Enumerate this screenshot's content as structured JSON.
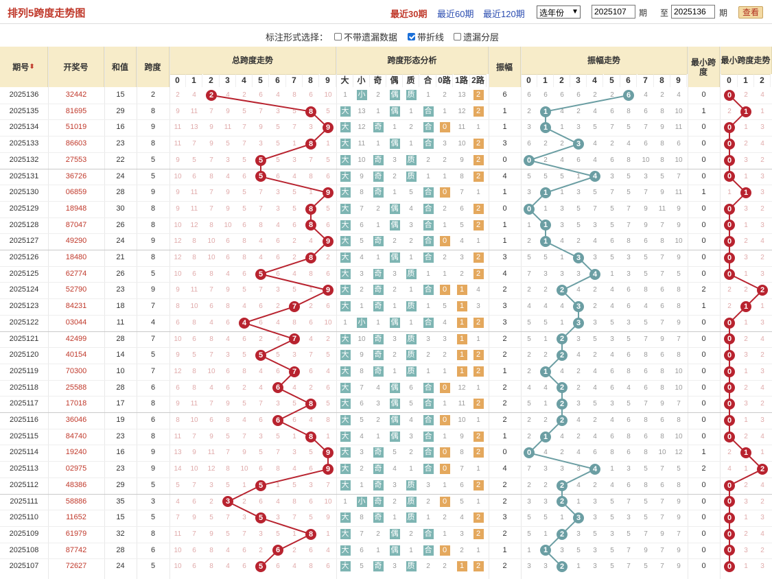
{
  "header": {
    "title": "排列5跨度走势图",
    "links": [
      "最近30期",
      "最近60期",
      "最近120期"
    ],
    "year_select": "选年份",
    "from_label": "期",
    "to_prefix": "至",
    "to_label": "期",
    "from_value": "2025107",
    "to_value": "2025136",
    "button": "查看"
  },
  "options": {
    "label": "标注形式选择：",
    "items": [
      {
        "label": "不带遗漏数据",
        "checked": false
      },
      {
        "label": "带折线",
        "checked": true
      },
      {
        "label": "遗漏分层",
        "checked": false
      }
    ]
  },
  "columns": {
    "period": "期号",
    "draw": "开奖号",
    "sum": "和值",
    "span": "跨度",
    "span_trend": "总跨度走势",
    "span_shape": "跨度形态分析",
    "amp": "振幅",
    "amp_trend": "振幅走势",
    "min_span": "最小跨度",
    "min_span_trend": "最小跨度走势",
    "digits": [
      "0",
      "1",
      "2",
      "3",
      "4",
      "5",
      "6",
      "7",
      "8",
      "9"
    ],
    "shape_heads": [
      "大",
      "小",
      "奇",
      "偶",
      "质",
      "合",
      "0路",
      "1路",
      "2路"
    ],
    "min_digits": [
      "0",
      "1",
      "2"
    ]
  },
  "colors": {
    "red": "#b8232f",
    "teal": "#6b9ea3",
    "header_bg": "#f7ecc9",
    "tag_blue": "#7eb5b3",
    "tag_orange": "#e4a85d"
  },
  "rows": [
    {
      "p": "2025136",
      "n": "32442",
      "s": "15",
      "k": 2,
      "sm": [
        "1",
        "小",
        "2",
        "偶",
        "质",
        "1",
        "2",
        "13",
        "2"
      ],
      "a": 6,
      "m": 0
    },
    {
      "p": "2025135",
      "n": "81695",
      "s": "29",
      "k": 8,
      "sm": [
        "大",
        "13",
        "1",
        "偶",
        "1",
        "合",
        "1",
        "12",
        "2"
      ],
      "a": 1,
      "m": 1
    },
    {
      "p": "2025134",
      "n": "51019",
      "s": "16",
      "k": 9,
      "sm": [
        "大",
        "12",
        "奇",
        "1",
        "2",
        "合",
        "0",
        "11",
        "1"
      ],
      "a": 1,
      "m": 0
    },
    {
      "p": "2025133",
      "n": "86603",
      "s": "23",
      "k": 8,
      "sm": [
        "大",
        "11",
        "1",
        "偶",
        "1",
        "合",
        "3",
        "10",
        "2"
      ],
      "a": 3,
      "m": 0
    },
    {
      "p": "2025132",
      "n": "27553",
      "s": "22",
      "k": 5,
      "sm": [
        "大",
        "10",
        "奇",
        "3",
        "质",
        "2",
        "2",
        "9",
        "2"
      ],
      "a": 0,
      "m": 0
    },
    {
      "p": "2025131",
      "n": "36726",
      "s": "24",
      "k": 5,
      "sm": [
        "大",
        "9",
        "奇",
        "2",
        "质",
        "1",
        "1",
        "8",
        "2"
      ],
      "a": 4,
      "m": 0
    },
    {
      "p": "2025130",
      "n": "06859",
      "s": "28",
      "k": 9,
      "sm": [
        "大",
        "8",
        "奇",
        "1",
        "5",
        "合",
        "0",
        "7",
        "1"
      ],
      "a": 1,
      "m": 1
    },
    {
      "p": "2025129",
      "n": "18948",
      "s": "30",
      "k": 8,
      "sm": [
        "大",
        "7",
        "2",
        "偶",
        "4",
        "合",
        "2",
        "6",
        "2"
      ],
      "a": 0,
      "m": 0
    },
    {
      "p": "2025128",
      "n": "87047",
      "s": "26",
      "k": 8,
      "sm": [
        "大",
        "6",
        "1",
        "偶",
        "3",
        "合",
        "1",
        "5",
        "2"
      ],
      "a": 1,
      "m": 0
    },
    {
      "p": "2025127",
      "n": "49290",
      "s": "24",
      "k": 9,
      "sm": [
        "大",
        "5",
        "奇",
        "2",
        "2",
        "合",
        "0",
        "4",
        "1"
      ],
      "a": 1,
      "m": 0
    },
    {
      "p": "2025126",
      "n": "18480",
      "s": "21",
      "k": 8,
      "sm": [
        "大",
        "4",
        "1",
        "偶",
        "1",
        "合",
        "2",
        "3",
        "2"
      ],
      "a": 3,
      "m": 0
    },
    {
      "p": "2025125",
      "n": "62774",
      "s": "26",
      "k": 5,
      "sm": [
        "大",
        "3",
        "奇",
        "3",
        "质",
        "1",
        "1",
        "2",
        "2"
      ],
      "a": 4,
      "m": 0
    },
    {
      "p": "2025124",
      "n": "52790",
      "s": "23",
      "k": 9,
      "sm": [
        "大",
        "2",
        "奇",
        "2",
        "1",
        "合",
        "0",
        "1",
        "4"
      ],
      "a": 2,
      "m": 2
    },
    {
      "p": "2025123",
      "n": "84231",
      "s": "18",
      "k": 7,
      "sm": [
        "大",
        "1",
        "奇",
        "1",
        "质",
        "1",
        "5",
        "1",
        "3"
      ],
      "a": 3,
      "m": 1
    },
    {
      "p": "2025122",
      "n": "03044",
      "s": "11",
      "k": 4,
      "sm": [
        "1",
        "小",
        "1",
        "偶",
        "1",
        "合",
        "4",
        "1",
        "2"
      ],
      "a": 3,
      "m": 0
    },
    {
      "p": "2025121",
      "n": "42499",
      "s": "28",
      "k": 7,
      "sm": [
        "大",
        "10",
        "奇",
        "3",
        "质",
        "3",
        "3",
        "1",
        "1"
      ],
      "a": 2,
      "m": 0
    },
    {
      "p": "2025120",
      "n": "40154",
      "s": "14",
      "k": 5,
      "sm": [
        "大",
        "9",
        "奇",
        "2",
        "质",
        "2",
        "2",
        "1",
        "2"
      ],
      "a": 2,
      "m": 0
    },
    {
      "p": "2025119",
      "n": "70300",
      "s": "10",
      "k": 7,
      "sm": [
        "大",
        "8",
        "奇",
        "1",
        "质",
        "1",
        "1",
        "1",
        "2"
      ],
      "a": 1,
      "m": 0
    },
    {
      "p": "2025118",
      "n": "25588",
      "s": "28",
      "k": 6,
      "sm": [
        "大",
        "7",
        "4",
        "偶",
        "6",
        "合",
        "0",
        "12",
        "1"
      ],
      "a": 2,
      "m": 0
    },
    {
      "p": "2025117",
      "n": "17018",
      "s": "17",
      "k": 8,
      "sm": [
        "大",
        "6",
        "3",
        "偶",
        "5",
        "合",
        "1",
        "11",
        "2"
      ],
      "a": 2,
      "m": 0
    },
    {
      "p": "2025116",
      "n": "36046",
      "s": "19",
      "k": 6,
      "sm": [
        "大",
        "5",
        "2",
        "偶",
        "4",
        "合",
        "0",
        "10",
        "1"
      ],
      "a": 2,
      "m": 0
    },
    {
      "p": "2025115",
      "n": "84740",
      "s": "23",
      "k": 8,
      "sm": [
        "大",
        "4",
        "1",
        "偶",
        "3",
        "合",
        "1",
        "9",
        "2"
      ],
      "a": 1,
      "m": 0
    },
    {
      "p": "2025114",
      "n": "19240",
      "s": "16",
      "k": 9,
      "sm": [
        "大",
        "3",
        "奇",
        "5",
        "2",
        "合",
        "0",
        "8",
        "2"
      ],
      "a": 0,
      "m": 1
    },
    {
      "p": "2025113",
      "n": "02975",
      "s": "23",
      "k": 9,
      "sm": [
        "大",
        "2",
        "奇",
        "4",
        "1",
        "合",
        "0",
        "7",
        "1"
      ],
      "a": 4,
      "m": 2
    },
    {
      "p": "2025112",
      "n": "48386",
      "s": "29",
      "k": 5,
      "sm": [
        "大",
        "1",
        "奇",
        "3",
        "质",
        "3",
        "1",
        "6",
        "2"
      ],
      "a": 2,
      "m": 0
    },
    {
      "p": "2025111",
      "n": "58886",
      "s": "35",
      "k": 3,
      "sm": [
        "1",
        "小",
        "奇",
        "2",
        "质",
        "2",
        "0",
        "5",
        "1"
      ],
      "a": 2,
      "m": 0
    },
    {
      "p": "2025110",
      "n": "11652",
      "s": "15",
      "k": 5,
      "sm": [
        "大",
        "8",
        "奇",
        "1",
        "质",
        "1",
        "2",
        "4",
        "2"
      ],
      "a": 3,
      "m": 0
    },
    {
      "p": "2025109",
      "n": "61979",
      "s": "32",
      "k": 8,
      "sm": [
        "大",
        "7",
        "2",
        "偶",
        "2",
        "合",
        "1",
        "3",
        "2"
      ],
      "a": 2,
      "m": 0
    },
    {
      "p": "2025108",
      "n": "87742",
      "s": "28",
      "k": 6,
      "sm": [
        "大",
        "6",
        "1",
        "偶",
        "1",
        "合",
        "0",
        "2",
        "1"
      ],
      "a": 1,
      "m": 0
    },
    {
      "p": "2025107",
      "n": "72627",
      "s": "24",
      "k": 5,
      "sm": [
        "大",
        "5",
        "奇",
        "3",
        "质",
        "2",
        "2",
        "1",
        "2"
      ],
      "a": 2,
      "m": 0
    }
  ]
}
